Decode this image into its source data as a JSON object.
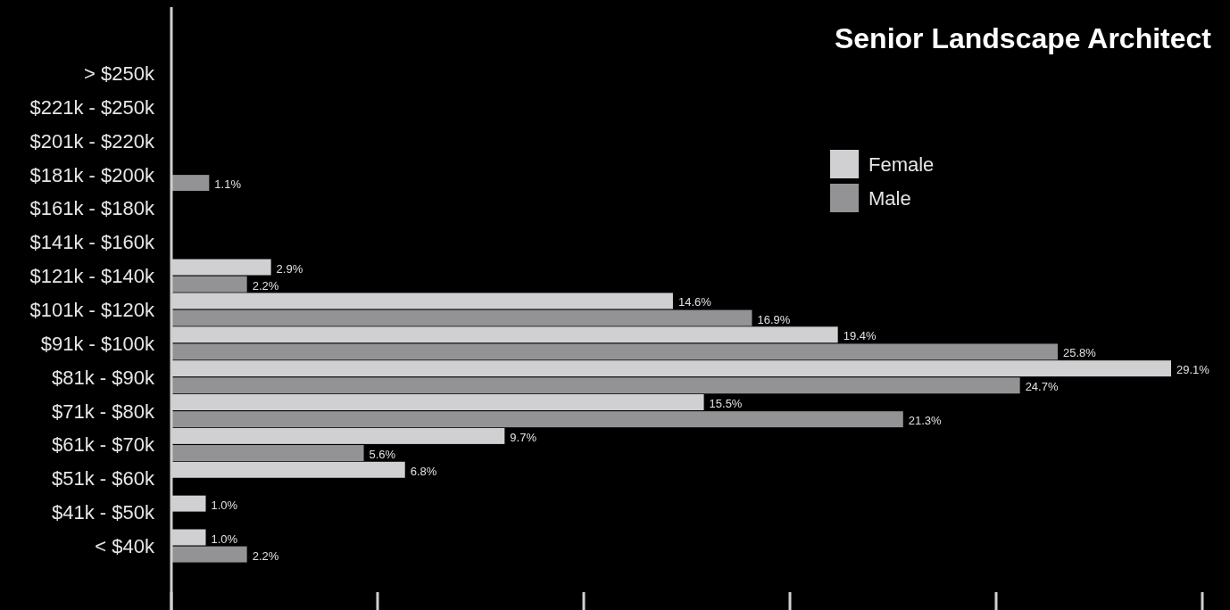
{
  "chart_data": {
    "type": "bar",
    "orientation": "horizontal",
    "title": "Senior Landscape Architect",
    "categories": [
      "> $250k",
      "$221k - $250k",
      "$201k - $220k",
      "$181k - $200k",
      "$161k - $180k",
      "$141k - $160k",
      "$121k - $140k",
      "$101k - $120k",
      "$91k - $100k",
      "$81k - $90k",
      "$71k - $80k",
      "$61k - $70k",
      "$51k - $60k",
      "$41k - $50k",
      "< $40k"
    ],
    "series": [
      {
        "name": "Female",
        "color": "#d0d0d2",
        "values": [
          null,
          null,
          null,
          null,
          null,
          null,
          2.9,
          14.6,
          19.4,
          29.1,
          15.5,
          9.7,
          6.8,
          1.0,
          1.0
        ],
        "value_labels": [
          null,
          null,
          null,
          null,
          null,
          null,
          "2.9%",
          "14.6%",
          "19.4%",
          "29.1%",
          "15.5%",
          "9.7%",
          "6.8%",
          "1.0%",
          "1.0%"
        ]
      },
      {
        "name": "Male",
        "color": "#939396",
        "values": [
          null,
          null,
          null,
          1.1,
          null,
          null,
          2.2,
          16.9,
          25.8,
          24.7,
          21.3,
          5.6,
          null,
          null,
          2.2
        ],
        "value_labels": [
          null,
          null,
          null,
          "1.1%",
          null,
          null,
          "2.2%",
          "16.9%",
          "25.8%",
          "24.7%",
          "21.3%",
          "5.6%",
          null,
          null,
          "2.2%"
        ]
      }
    ],
    "tick_labels": "y",
    "legend": "top right"
  }
}
